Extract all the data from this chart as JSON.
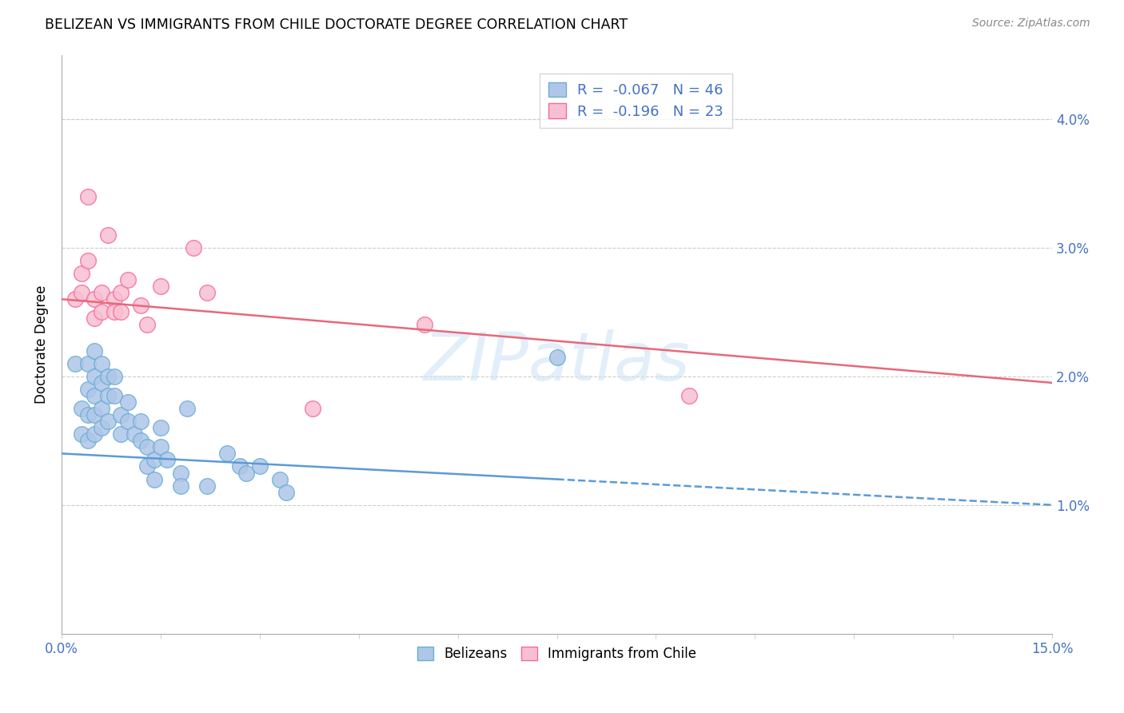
{
  "title": "BELIZEAN VS IMMIGRANTS FROM CHILE DOCTORATE DEGREE CORRELATION CHART",
  "source_text": "Source: ZipAtlas.com",
  "ylabel": "Doctorate Degree",
  "xlim": [
    0.0,
    0.15
  ],
  "ylim": [
    0.0,
    0.045
  ],
  "xticks": [
    0.0,
    0.015,
    0.03,
    0.045,
    0.06,
    0.075,
    0.09,
    0.105,
    0.12,
    0.135,
    0.15
  ],
  "xticklabels": [
    "0.0%",
    "",
    "",
    "",
    "",
    "",
    "",
    "",
    "",
    "",
    "15.0%"
  ],
  "ytick_positions": [
    0.01,
    0.02,
    0.03,
    0.04
  ],
  "yticklabels": [
    "1.0%",
    "2.0%",
    "3.0%",
    "4.0%"
  ],
  "legend_r1": "R =  -0.067",
  "legend_n1": "N = 46",
  "legend_r2": "R =  -0.196",
  "legend_n2": "N = 23",
  "blue_color": "#aec6e8",
  "blue_edge_color": "#6baed6",
  "pink_color": "#f7c0d0",
  "pink_edge_color": "#f768a1",
  "blue_line_color": "#5b9bd5",
  "pink_line_color": "#e8687a",
  "watermark": "ZIPatlas",
  "blue_scatter": [
    [
      0.002,
      0.021
    ],
    [
      0.003,
      0.0175
    ],
    [
      0.003,
      0.0155
    ],
    [
      0.004,
      0.021
    ],
    [
      0.004,
      0.019
    ],
    [
      0.004,
      0.017
    ],
    [
      0.004,
      0.015
    ],
    [
      0.005,
      0.022
    ],
    [
      0.005,
      0.02
    ],
    [
      0.005,
      0.0185
    ],
    [
      0.005,
      0.017
    ],
    [
      0.005,
      0.0155
    ],
    [
      0.006,
      0.021
    ],
    [
      0.006,
      0.0195
    ],
    [
      0.006,
      0.0175
    ],
    [
      0.006,
      0.016
    ],
    [
      0.007,
      0.02
    ],
    [
      0.007,
      0.0185
    ],
    [
      0.007,
      0.0165
    ],
    [
      0.008,
      0.02
    ],
    [
      0.008,
      0.0185
    ],
    [
      0.009,
      0.017
    ],
    [
      0.009,
      0.0155
    ],
    [
      0.01,
      0.018
    ],
    [
      0.01,
      0.0165
    ],
    [
      0.011,
      0.0155
    ],
    [
      0.012,
      0.0165
    ],
    [
      0.012,
      0.015
    ],
    [
      0.013,
      0.0145
    ],
    [
      0.013,
      0.013
    ],
    [
      0.014,
      0.0135
    ],
    [
      0.014,
      0.012
    ],
    [
      0.015,
      0.016
    ],
    [
      0.015,
      0.0145
    ],
    [
      0.016,
      0.0135
    ],
    [
      0.018,
      0.0125
    ],
    [
      0.018,
      0.0115
    ],
    [
      0.019,
      0.0175
    ],
    [
      0.022,
      0.0115
    ],
    [
      0.025,
      0.014
    ],
    [
      0.027,
      0.013
    ],
    [
      0.028,
      0.0125
    ],
    [
      0.03,
      0.013
    ],
    [
      0.033,
      0.012
    ],
    [
      0.034,
      0.011
    ],
    [
      0.075,
      0.0215
    ]
  ],
  "pink_scatter": [
    [
      0.002,
      0.026
    ],
    [
      0.003,
      0.028
    ],
    [
      0.003,
      0.0265
    ],
    [
      0.004,
      0.029
    ],
    [
      0.004,
      0.034
    ],
    [
      0.005,
      0.026
    ],
    [
      0.005,
      0.0245
    ],
    [
      0.006,
      0.0265
    ],
    [
      0.006,
      0.025
    ],
    [
      0.007,
      0.031
    ],
    [
      0.008,
      0.026
    ],
    [
      0.008,
      0.025
    ],
    [
      0.009,
      0.0265
    ],
    [
      0.009,
      0.025
    ],
    [
      0.01,
      0.0275
    ],
    [
      0.012,
      0.0255
    ],
    [
      0.013,
      0.024
    ],
    [
      0.015,
      0.027
    ],
    [
      0.02,
      0.03
    ],
    [
      0.022,
      0.0265
    ],
    [
      0.038,
      0.0175
    ],
    [
      0.055,
      0.024
    ],
    [
      0.095,
      0.0185
    ]
  ],
  "blue_trend_x": [
    0.0,
    0.15
  ],
  "blue_trend_y": [
    0.014,
    0.01
  ],
  "pink_trend_x": [
    0.0,
    0.15
  ],
  "pink_trend_y": [
    0.026,
    0.0195
  ],
  "blue_trend_dashed_start": 0.075
}
